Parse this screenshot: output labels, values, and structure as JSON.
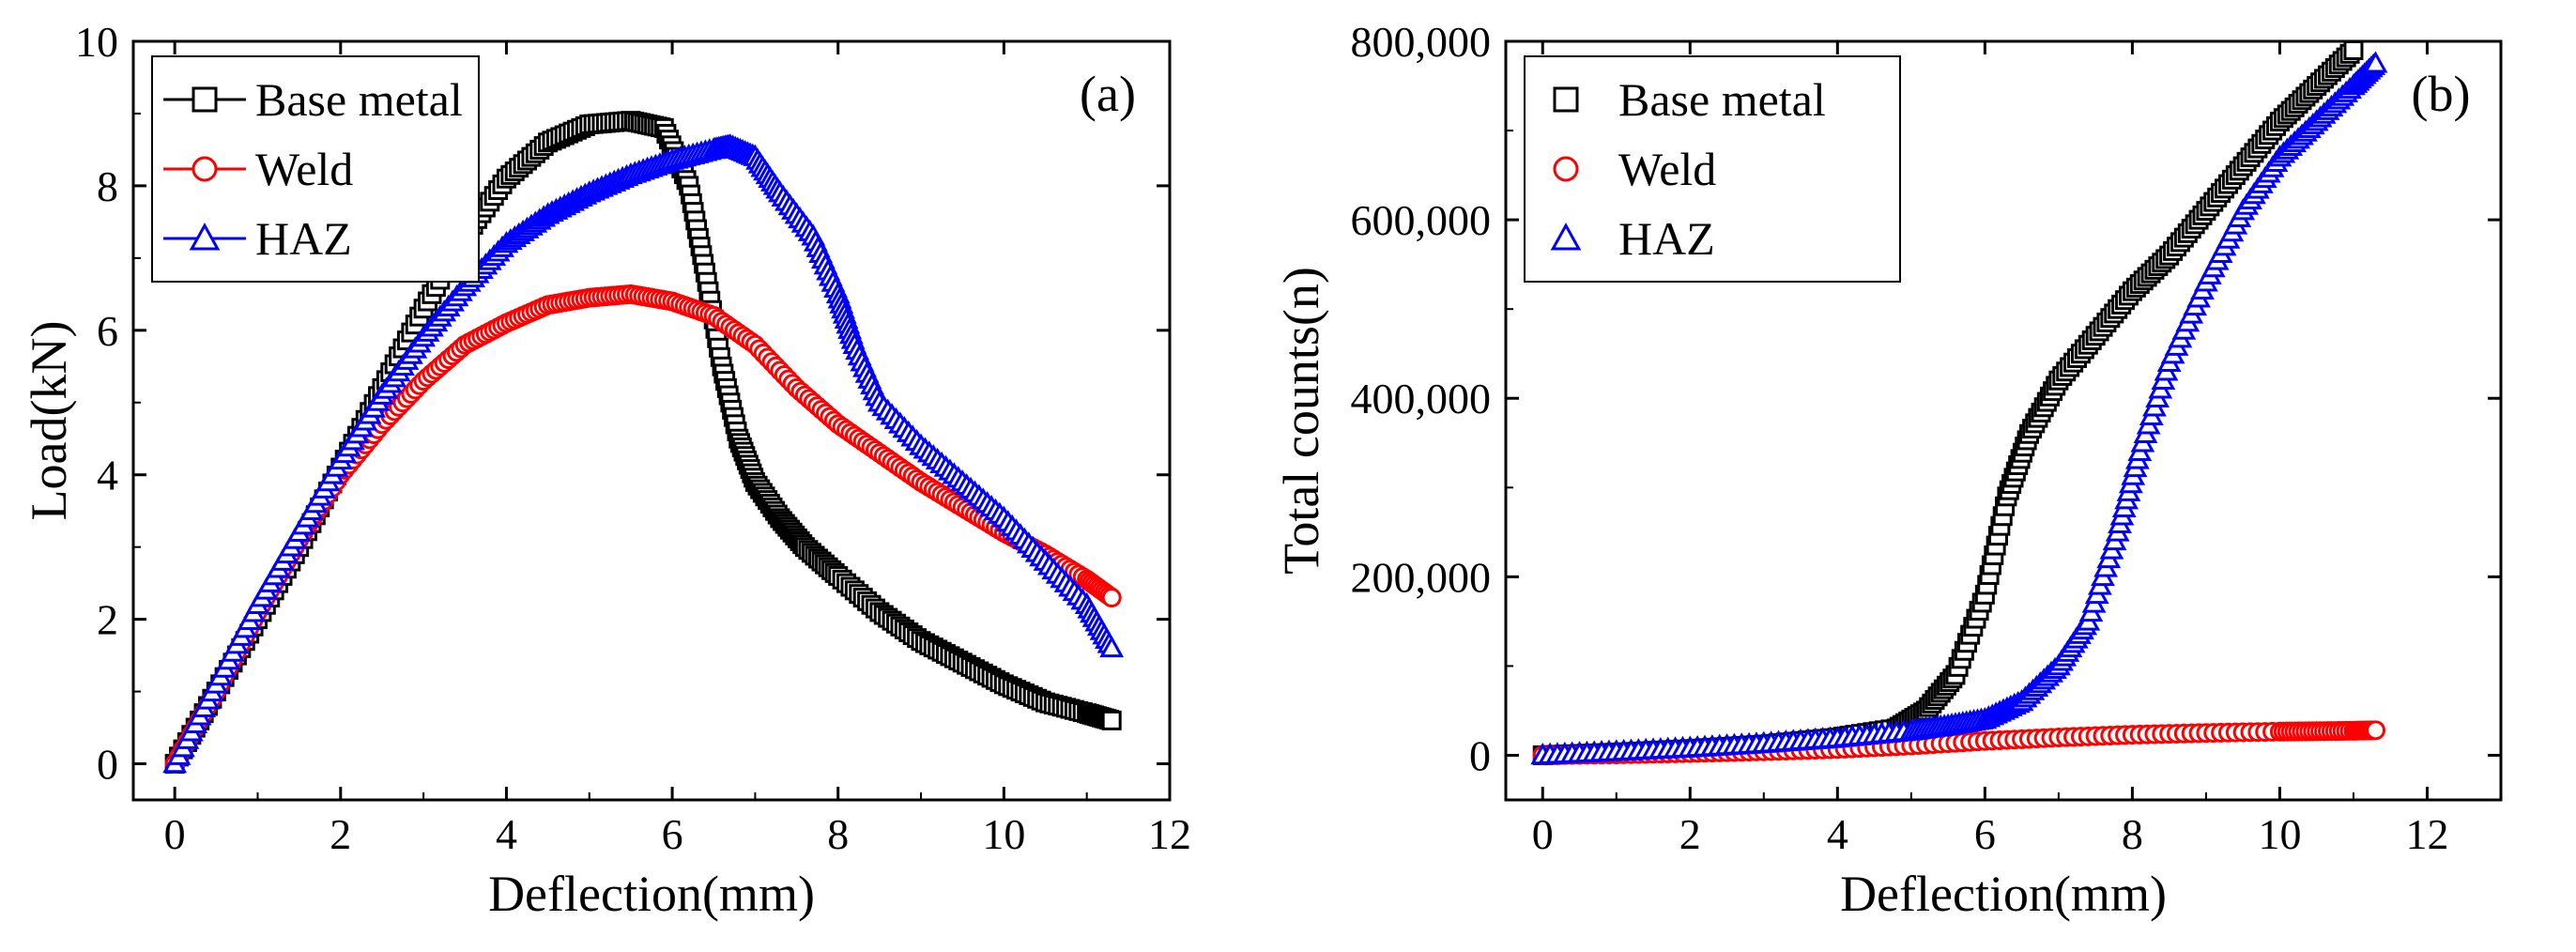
{
  "chart_data": [
    {
      "type": "scatter",
      "panel_label": "(a)",
      "xlabel": "Deflection(mm)",
      "ylabel": "Load(kN)",
      "xlim": [
        -0.5,
        12
      ],
      "ylim": [
        -0.5,
        10
      ],
      "xticks": [
        0,
        2,
        4,
        6,
        8,
        10,
        12
      ],
      "yticks": [
        0,
        2,
        4,
        6,
        8,
        10
      ],
      "xtick_labels": [
        "0",
        "2",
        "4",
        "6",
        "8",
        "10",
        "12"
      ],
      "ytick_labels": [
        "0",
        "2",
        "4",
        "6",
        "8",
        "10"
      ],
      "legend_position": "top-left",
      "legend_style": "line-marker",
      "series": [
        {
          "name": "Base metal",
          "color": "#000000",
          "marker": "square",
          "x": [
            0,
            0.5,
            1,
            1.5,
            2,
            2.5,
            3,
            3.5,
            4,
            4.5,
            5,
            5.5,
            5.9,
            6.2,
            6.4,
            6.6,
            6.8,
            7,
            7.3,
            7.6,
            8,
            8.5,
            9,
            9.5,
            10,
            10.5,
            11,
            11.3
          ],
          "y": [
            0,
            1.0,
            2.0,
            3.0,
            4.1,
            5.2,
            6.3,
            7.3,
            8.1,
            8.6,
            8.85,
            8.9,
            8.8,
            8.0,
            6.8,
            5.5,
            4.5,
            3.9,
            3.4,
            3.0,
            2.6,
            2.1,
            1.7,
            1.4,
            1.1,
            0.85,
            0.7,
            0.6
          ]
        },
        {
          "name": "Weld",
          "color": "#ff0000",
          "marker": "circle",
          "x": [
            0,
            0.5,
            1,
            1.5,
            2,
            2.5,
            3,
            3.5,
            4,
            4.5,
            5,
            5.5,
            6,
            6.5,
            7,
            7.5,
            8,
            8.5,
            9,
            9.5,
            10,
            10.5,
            11,
            11.3
          ],
          "y": [
            0,
            1.0,
            2.1,
            3.1,
            4.0,
            4.7,
            5.3,
            5.8,
            6.1,
            6.35,
            6.45,
            6.5,
            6.4,
            6.2,
            5.8,
            5.2,
            4.7,
            4.3,
            3.9,
            3.55,
            3.2,
            2.9,
            2.55,
            2.3
          ]
        },
        {
          "name": "HAZ",
          "color": "#0000ff",
          "marker": "triangle",
          "x": [
            0,
            0.5,
            1,
            1.5,
            2,
            2.5,
            3,
            3.5,
            4,
            4.5,
            5,
            5.5,
            6,
            6.5,
            6.7,
            7,
            7.3,
            7.7,
            8,
            8.2,
            8.5,
            9,
            9.5,
            10,
            10.5,
            11,
            11.3
          ],
          "y": [
            0,
            1.1,
            2.2,
            3.2,
            4.2,
            5.1,
            5.9,
            6.6,
            7.2,
            7.6,
            7.9,
            8.15,
            8.35,
            8.5,
            8.55,
            8.4,
            7.9,
            7.3,
            6.5,
            5.8,
            5.0,
            4.4,
            3.9,
            3.4,
            2.8,
            2.2,
            1.6
          ]
        }
      ]
    },
    {
      "type": "scatter",
      "panel_label": "(b)",
      "xlabel": "Deflection(mm)",
      "ylabel": "Total counts(n)",
      "xlim": [
        -0.5,
        13
      ],
      "ylim": [
        -50000,
        800000
      ],
      "xticks": [
        0,
        2,
        4,
        6,
        8,
        10,
        12
      ],
      "yticks": [
        0,
        200000,
        400000,
        600000,
        800000
      ],
      "xtick_labels": [
        "0",
        "2",
        "4",
        "6",
        "8",
        "10",
        "12"
      ],
      "ytick_labels": [
        "0",
        "200,000",
        "400,000",
        "600,000",
        "800,000"
      ],
      "legend_position": "top-left",
      "legend_style": "marker",
      "series": [
        {
          "name": "Base metal",
          "color": "#000000",
          "marker": "square",
          "x": [
            0,
            1,
            2,
            3,
            4,
            4.8,
            5.2,
            5.6,
            6.0,
            6.3,
            6.6,
            7.0,
            7.5,
            8.0,
            8.5,
            9.0,
            9.5,
            10.0,
            10.5,
            11.0
          ],
          "y": [
            0,
            3000,
            7000,
            12000,
            20000,
            30000,
            50000,
            90000,
            180000,
            290000,
            360000,
            420000,
            470000,
            520000,
            560000,
            610000,
            660000,
            710000,
            750000,
            790000
          ]
        },
        {
          "name": "Weld",
          "color": "#ff0000",
          "marker": "circle",
          "x": [
            0,
            1,
            2,
            3,
            4,
            5,
            6,
            7,
            8,
            9,
            10,
            10.5,
            11,
            11.3
          ],
          "y": [
            0,
            1000,
            2500,
            4500,
            7000,
            11000,
            16000,
            20000,
            23000,
            25000,
            26500,
            27000,
            27500,
            28000
          ]
        },
        {
          "name": "HAZ",
          "color": "#0000ff",
          "marker": "triangle",
          "x": [
            0,
            1,
            2,
            3,
            4,
            5,
            5.5,
            6,
            6.5,
            7,
            7.4,
            7.8,
            8.1,
            8.5,
            9.0,
            9.5,
            10.0,
            10.5,
            11.0,
            11.3
          ],
          "y": [
            0,
            4000,
            8000,
            13000,
            19000,
            27000,
            33000,
            40000,
            60000,
            100000,
            150000,
            250000,
            340000,
            440000,
            530000,
            610000,
            670000,
            710000,
            750000,
            775000
          ]
        }
      ]
    }
  ]
}
